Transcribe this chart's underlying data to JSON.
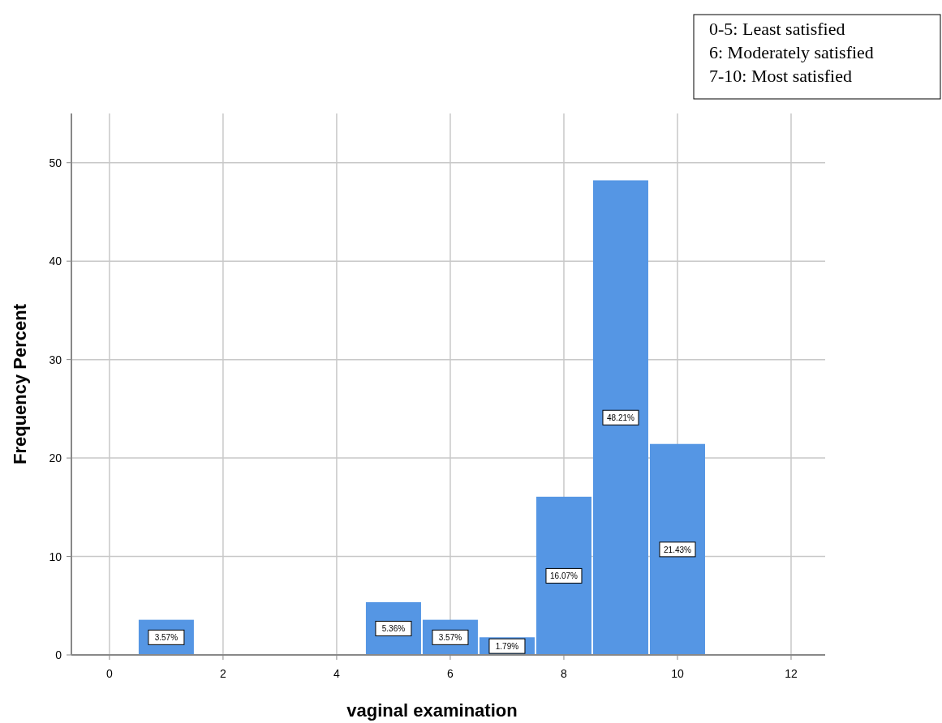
{
  "chart_data": {
    "type": "histogram",
    "xlabel": "vaginal examination",
    "ylabel": "Frequency Percent",
    "bins": [
      0.5,
      1.5,
      2.5,
      3.5,
      4.5,
      5.5,
      6.5,
      7.5,
      8.5,
      9.5,
      10.5
    ],
    "values": [
      3.57,
      0,
      0,
      0,
      5.36,
      3.57,
      1.79,
      16.07,
      48.21,
      21.43
    ],
    "value_labels": [
      "3.57%",
      null,
      null,
      null,
      "5.36%",
      "3.57%",
      "1.79%",
      "16.07%",
      "48.21%",
      "21.43%"
    ],
    "color": "#5596e4",
    "xlim": [
      -0.67,
      12.6
    ],
    "xticks": [
      0,
      2,
      4,
      6,
      8,
      10,
      12
    ],
    "ylim": [
      0,
      55
    ],
    "yticks": [
      0,
      10,
      20,
      30,
      40,
      50
    ],
    "grid": true,
    "annotations": [
      "0-5: Least satisfied",
      "6: Moderately satisfied",
      "7-10: Most satisfied"
    ]
  }
}
